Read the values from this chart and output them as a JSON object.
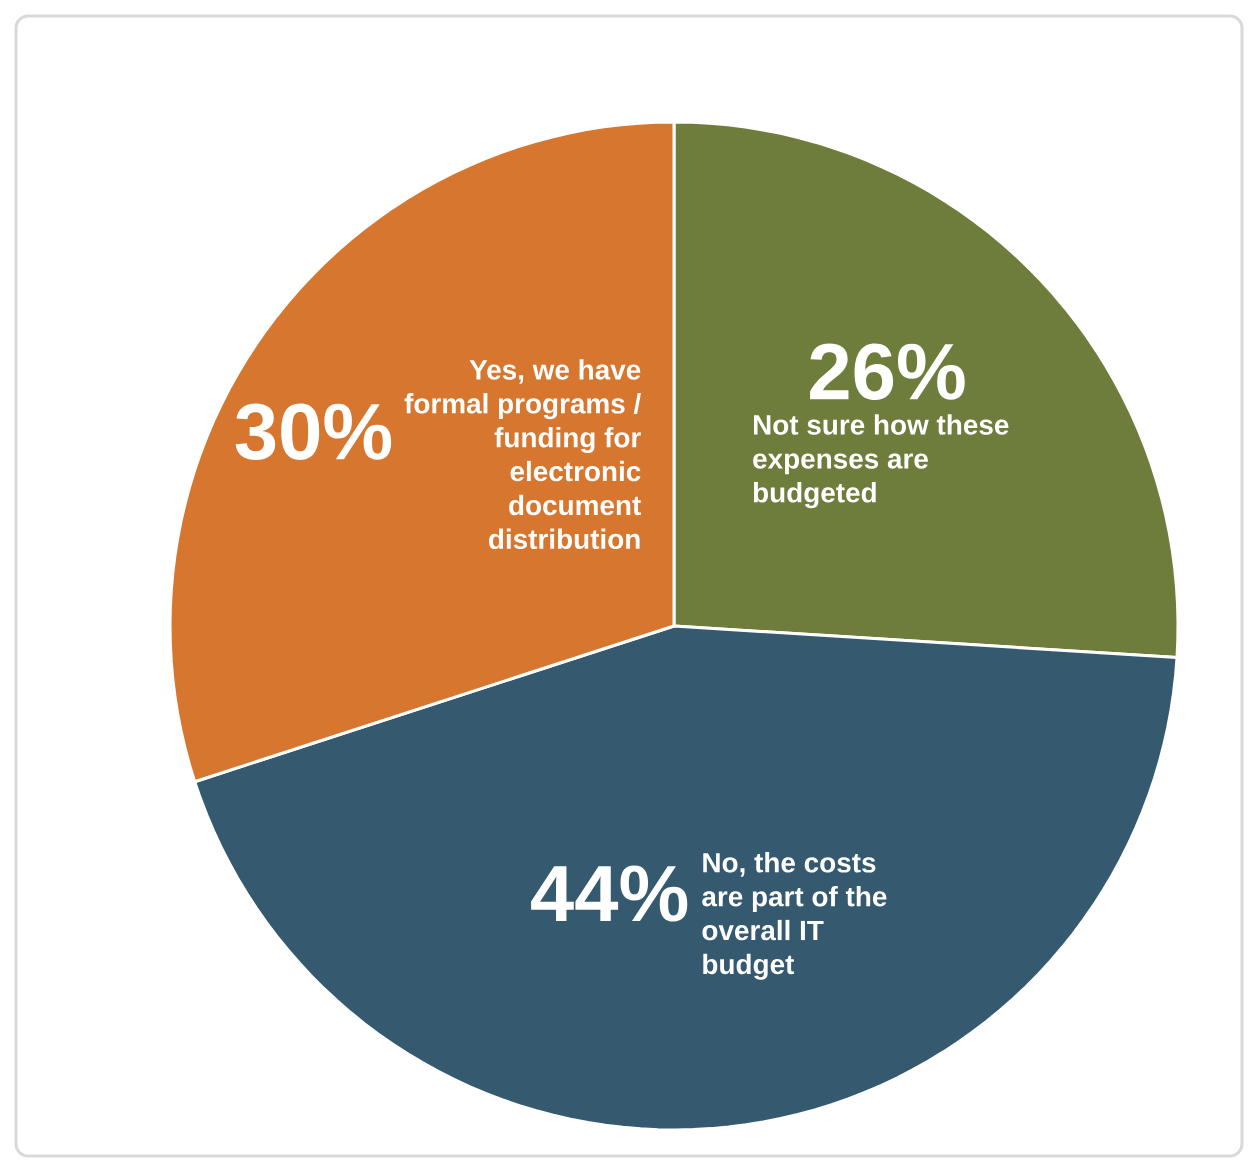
{
  "chart_data": {
    "type": "pie",
    "categories": [
      "Not sure how these expenses are budgeted",
      "No, the costs are part of the overall IT budget",
      "Yes, we have formal programs / funding for electronic document distribution"
    ],
    "values": [
      26,
      44,
      30
    ],
    "colors": [
      "#6e7d3b",
      "#355a70",
      "#d7772f"
    ],
    "value_labels": [
      "26%",
      "44%",
      "30%"
    ]
  }
}
